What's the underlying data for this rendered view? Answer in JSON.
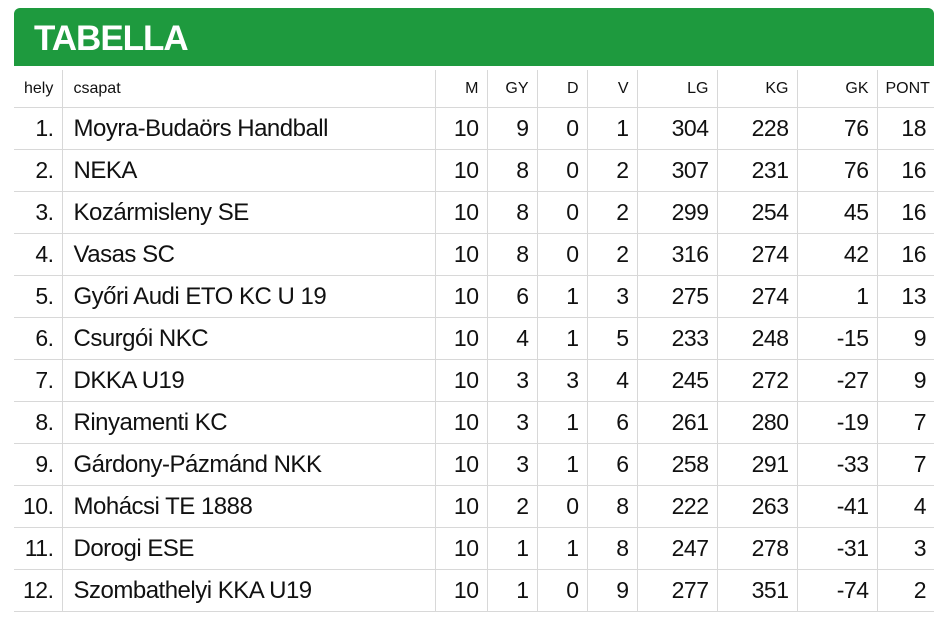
{
  "header": {
    "title": "TABELLA"
  },
  "table": {
    "columns": [
      "hely",
      "csapat",
      "M",
      "GY",
      "D",
      "V",
      "LG",
      "KG",
      "GK",
      "PONT"
    ],
    "rows": [
      [
        "1.",
        "Moyra-Budaörs Handball",
        "10",
        "9",
        "0",
        "1",
        "304",
        "228",
        "76",
        "18"
      ],
      [
        "2.",
        "NEKA",
        "10",
        "8",
        "0",
        "2",
        "307",
        "231",
        "76",
        "16"
      ],
      [
        "3.",
        "Kozármisleny SE",
        "10",
        "8",
        "0",
        "2",
        "299",
        "254",
        "45",
        "16"
      ],
      [
        "4.",
        "Vasas SC",
        "10",
        "8",
        "0",
        "2",
        "316",
        "274",
        "42",
        "16"
      ],
      [
        "5.",
        "Győri Audi ETO KC U 19",
        "10",
        "6",
        "1",
        "3",
        "275",
        "274",
        "1",
        "13"
      ],
      [
        "6.",
        "Csurgói NKC",
        "10",
        "4",
        "1",
        "5",
        "233",
        "248",
        "-15",
        "9"
      ],
      [
        "7.",
        "DKKA U19",
        "10",
        "3",
        "3",
        "4",
        "245",
        "272",
        "-27",
        "9"
      ],
      [
        "8.",
        "Rinyamenti KC",
        "10",
        "3",
        "1",
        "6",
        "261",
        "280",
        "-19",
        "7"
      ],
      [
        "9.",
        "Gárdony-Pázmánd NKK",
        "10",
        "3",
        "1",
        "6",
        "258",
        "291",
        "-33",
        "7"
      ],
      [
        "10.",
        "Mohácsi TE 1888",
        "10",
        "2",
        "0",
        "8",
        "222",
        "263",
        "-41",
        "4"
      ],
      [
        "11.",
        "Dorogi ESE",
        "10",
        "1",
        "1",
        "8",
        "247",
        "278",
        "-31",
        "3"
      ],
      [
        "12.",
        "Szombathelyi KKA U19",
        "10",
        "1",
        "0",
        "9",
        "277",
        "351",
        "-74",
        "2"
      ]
    ]
  }
}
